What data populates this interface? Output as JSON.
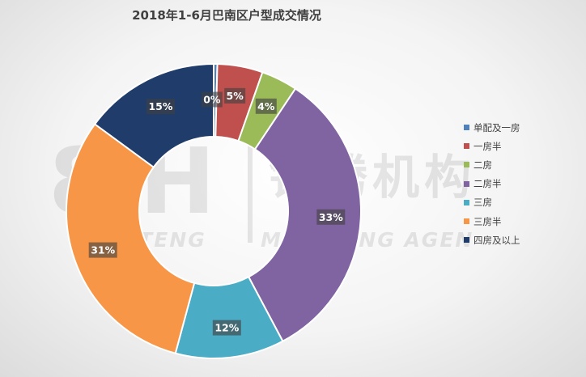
{
  "chart_data": {
    "type": "pie",
    "variant": "donut",
    "title": "2018年1-6月巴南区户型成交情况",
    "categories": [
      "单配及一房",
      "一房半",
      "二房",
      "二房半",
      "三房",
      "三房半",
      "四房及以上"
    ],
    "values": [
      0,
      5,
      4,
      33,
      12,
      31,
      15
    ],
    "value_labels": [
      "0%",
      "5%",
      "4%",
      "33%",
      "12%",
      "31%",
      "15%"
    ],
    "colors": [
      "#4f81bd",
      "#c0504d",
      "#9bbb59",
      "#8064a2",
      "#4bacc6",
      "#f79646",
      "#1f3c6b"
    ],
    "legend_position": "right"
  },
  "watermark": {
    "logo_text": "8-H",
    "cn_text": "铭腾机构",
    "en_text_left": "MINGTENG",
    "en_text_right": "MINGTENG AGEN"
  }
}
